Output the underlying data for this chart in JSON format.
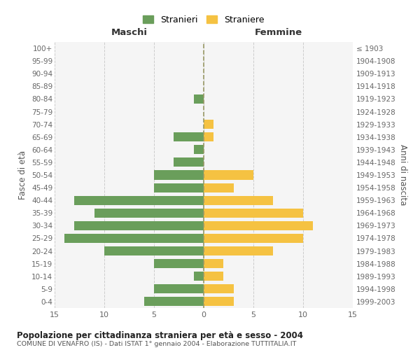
{
  "age_groups": [
    "100+",
    "95-99",
    "90-94",
    "85-89",
    "80-84",
    "75-79",
    "70-74",
    "65-69",
    "60-64",
    "55-59",
    "50-54",
    "45-49",
    "40-44",
    "35-39",
    "30-34",
    "25-29",
    "20-24",
    "15-19",
    "10-14",
    "5-9",
    "0-4"
  ],
  "birth_years": [
    "≤ 1903",
    "1904-1908",
    "1909-1913",
    "1914-1918",
    "1919-1923",
    "1924-1928",
    "1929-1933",
    "1934-1938",
    "1939-1943",
    "1944-1948",
    "1949-1953",
    "1954-1958",
    "1959-1963",
    "1964-1968",
    "1969-1973",
    "1974-1978",
    "1979-1983",
    "1984-1988",
    "1989-1993",
    "1994-1998",
    "1999-2003"
  ],
  "maschi": [
    0,
    0,
    0,
    0,
    1,
    0,
    0,
    3,
    1,
    3,
    5,
    5,
    13,
    11,
    13,
    14,
    10,
    5,
    1,
    5,
    6
  ],
  "femmine": [
    0,
    0,
    0,
    0,
    0,
    0,
    1,
    1,
    0,
    0,
    5,
    3,
    7,
    10,
    11,
    10,
    7,
    2,
    2,
    3,
    3
  ],
  "color_maschi": "#6a9e5b",
  "color_femmine": "#f5c242",
  "title_main": "Popolazione per cittadinanza straniera per età e sesso - 2004",
  "subtitle": "COMUNE DI VENAFRO (IS) - Dati ISTAT 1° gennaio 2004 - Elaborazione TUTTITALIA.IT",
  "xlabel_left": "Maschi",
  "xlabel_right": "Femmine",
  "ylabel_left": "Fasce di età",
  "ylabel_right": "Anni di nascita",
  "legend_maschi": "Stranieri",
  "legend_femmine": "Straniere",
  "xlim": 15,
  "bg_color": "#f5f5f5",
  "grid_color": "#cccccc"
}
